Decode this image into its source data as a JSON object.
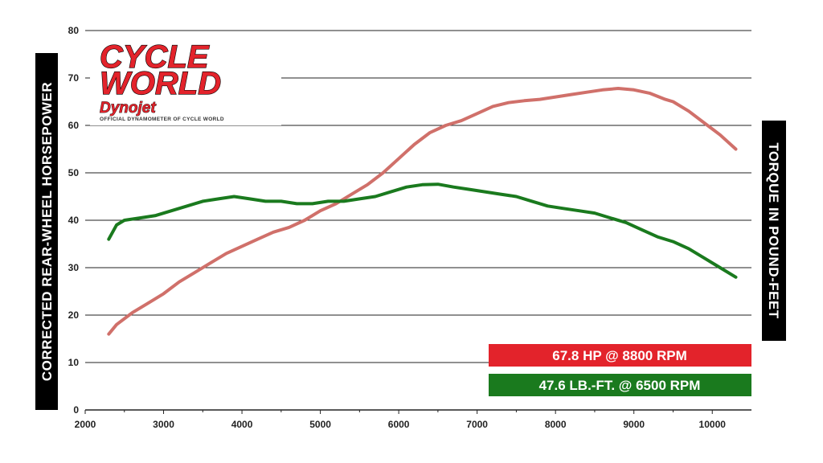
{
  "chart_data": {
    "type": "line",
    "title": "",
    "xlabel": "",
    "ylabel": "CORRECTED REAR-WHEEL HORSEPOWER",
    "y2label": "TORQUE IN POUND-FEET",
    "xlim": [
      2000,
      10500
    ],
    "ylim": [
      0,
      80
    ],
    "x_ticks": [
      2000,
      3000,
      4000,
      5000,
      6000,
      7000,
      8000,
      9000,
      10000
    ],
    "y_ticks": [
      0,
      10,
      20,
      30,
      40,
      50,
      60,
      70,
      80
    ],
    "grid": "horizontal",
    "series": [
      {
        "key": "hp",
        "color": "#d0706a",
        "x": [
          2300,
          2400,
          2600,
          2800,
          3000,
          3200,
          3400,
          3600,
          3800,
          4000,
          4200,
          4400,
          4600,
          4800,
          5000,
          5200,
          5400,
          5600,
          5800,
          6000,
          6200,
          6400,
          6600,
          6800,
          7000,
          7200,
          7400,
          7600,
          7800,
          8000,
          8200,
          8400,
          8600,
          8800,
          9000,
          9200,
          9400,
          9500,
          9700,
          9900,
          10100,
          10300
        ],
        "y": [
          16,
          18,
          20.5,
          22.5,
          24.5,
          27,
          29,
          31,
          33,
          34.5,
          36,
          37.5,
          38.5,
          40,
          42,
          43.5,
          45.5,
          47.5,
          50,
          53,
          56,
          58.5,
          60,
          61,
          62.5,
          64,
          64.8,
          65.2,
          65.5,
          66,
          66.5,
          67,
          67.5,
          67.8,
          67.5,
          66.8,
          65.5,
          65,
          63,
          60.5,
          58,
          55
        ]
      },
      {
        "key": "torque",
        "color": "#1a7a1e",
        "x": [
          2300,
          2400,
          2500,
          2700,
          2900,
          3100,
          3300,
          3500,
          3700,
          3900,
          4100,
          4300,
          4500,
          4700,
          4900,
          5100,
          5300,
          5500,
          5700,
          5900,
          6100,
          6300,
          6500,
          6700,
          6900,
          7100,
          7300,
          7500,
          7700,
          7900,
          8100,
          8300,
          8500,
          8700,
          8900,
          9100,
          9300,
          9500,
          9700,
          9900,
          10100,
          10300
        ],
        "y": [
          36,
          39,
          40,
          40.5,
          41,
          42,
          43,
          44,
          44.5,
          45,
          44.5,
          44,
          44,
          43.5,
          43.5,
          44,
          44,
          44.5,
          45,
          46,
          47,
          47.5,
          47.6,
          47,
          46.5,
          46,
          45.5,
          45,
          44,
          43,
          42.5,
          42,
          41.5,
          40.5,
          39.5,
          38,
          36.5,
          35.5,
          34,
          32,
          30,
          28
        ]
      }
    ],
    "annotations": [
      {
        "key": "hp_peak",
        "text": "67.8 HP @ 8800 RPM",
        "color": "#e3232b",
        "placement": "bottom-right"
      },
      {
        "key": "tq_peak",
        "text": "47.6 LB.-FT. @ 6500 RPM",
        "color": "#1a7a1e",
        "placement": "bottom-right"
      }
    ]
  },
  "logo": {
    "line1": "CYCLE",
    "line2": "WORLD",
    "sub": "Dynojet",
    "tagline": "OFFICIAL DYNAMOMETER OF CYCLE WORLD"
  }
}
